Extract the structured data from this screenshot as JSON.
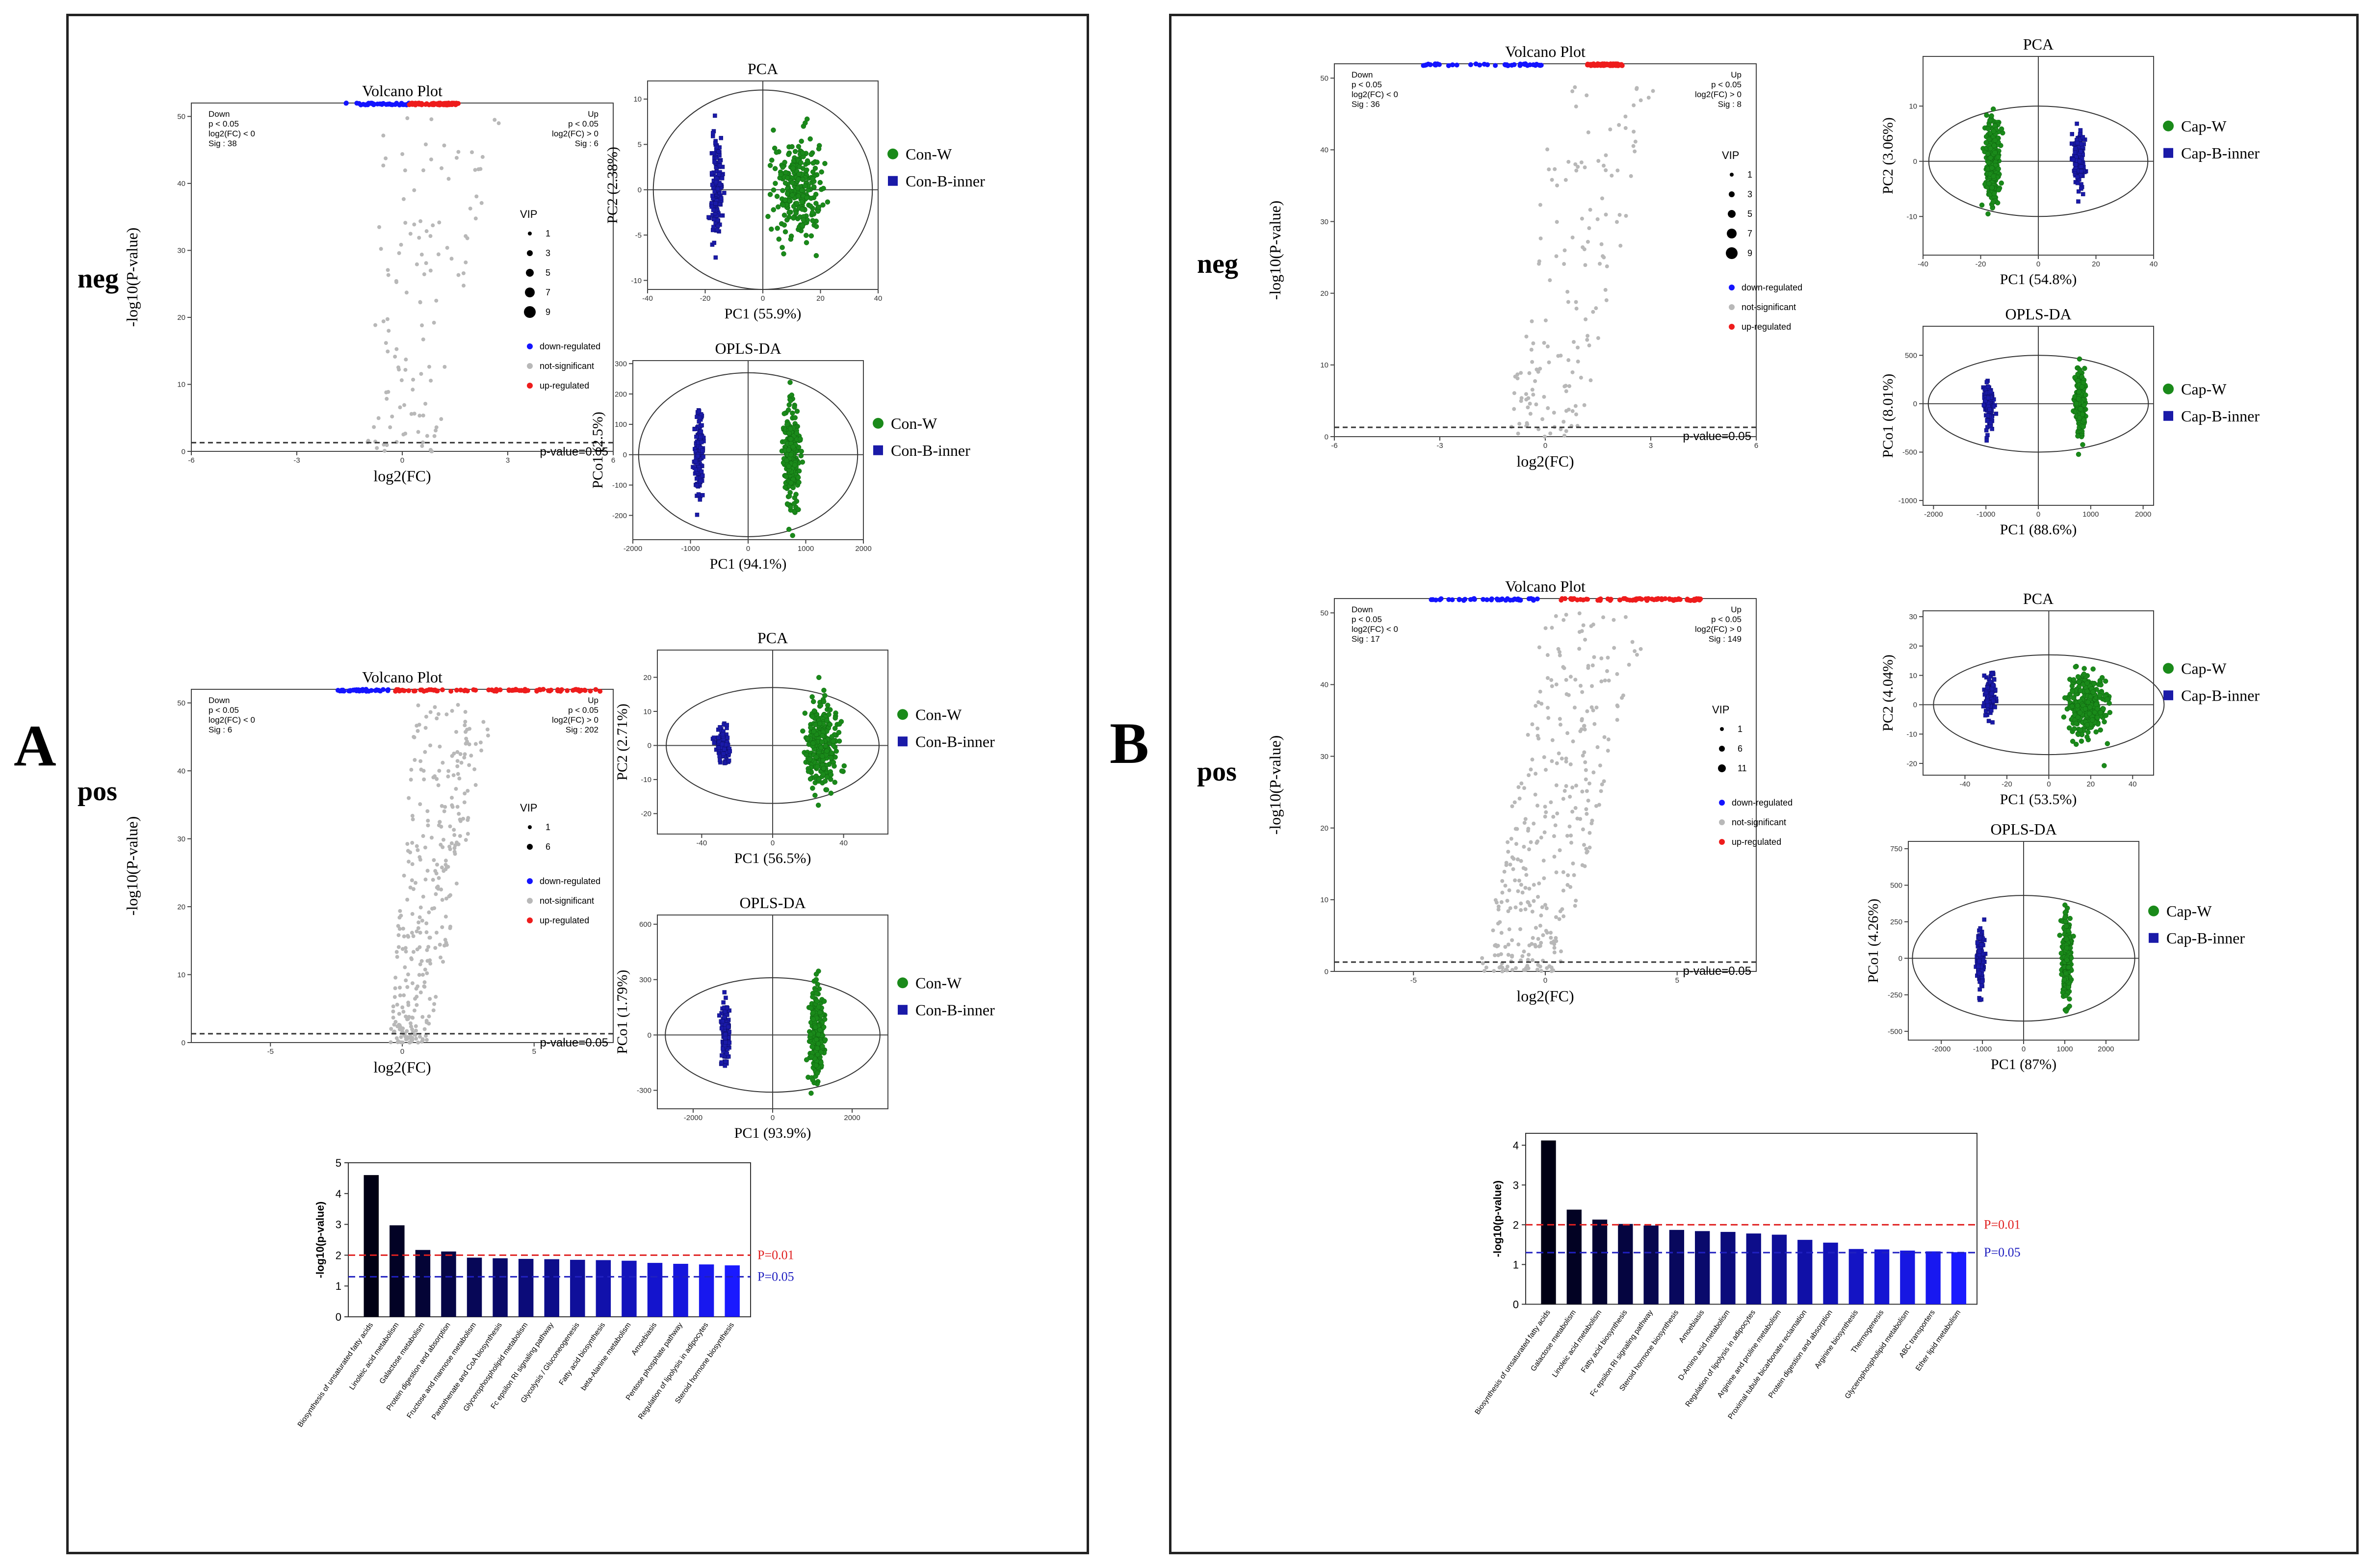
{
  "panels": {
    "A": {
      "letter": "A",
      "neg_label": "neg",
      "pos_label": "pos"
    },
    "B": {
      "letter": "B",
      "neg_label": "neg",
      "pos_label": "pos"
    }
  },
  "colors": {
    "down": "#1414ff",
    "up": "#ee1c1c",
    "ns": "#b8b8b8",
    "green": "#1a8a1a",
    "blue": "#1a1aa8",
    "barBlack": "#000000",
    "barBlue": "#1a1aff",
    "lineRed": "#e02020",
    "lineBlue": "#2020c0"
  },
  "chart_data": [
    {
      "id": "A-neg-volcano",
      "type": "scatter",
      "title": "Volcano Plot",
      "xlabel": "log2(FC)",
      "ylabel": "-log10(P-value)",
      "xlim": [
        -6,
        6
      ],
      "ylim": [
        0,
        52
      ],
      "xticks": [
        -6,
        -3,
        0,
        3,
        6
      ],
      "yticks": [
        0,
        10,
        20,
        30,
        40,
        50
      ],
      "down_info": [
        "Down",
        "p < 0.05",
        "log2(FC) < 0",
        "Sig : 38"
      ],
      "up_info": [
        "Up",
        "p < 0.05",
        "log2(FC) > 0",
        "Sig : 6"
      ],
      "vip_title": "VIP",
      "vip_levels": [
        "1",
        "3",
        "5",
        "7",
        "9"
      ],
      "legend": [
        "down-regulated",
        "not-significant",
        "up-regulated"
      ],
      "threshold_label": "p-value=0.05",
      "threshold": 1.3,
      "down_x": [
        -1.6,
        0.2
      ],
      "up_x": [
        0.2,
        1.6
      ],
      "ns_range": [
        [
          -1.0,
          1.0
        ],
        [
          -0.6,
          2.8
        ]
      ],
      "ns_count": 120,
      "sig_y": 52
    },
    {
      "id": "A-neg-pca",
      "type": "scatter",
      "title": "PCA",
      "xlabel": "PC1 (55.9%)",
      "ylabel": "PC2 (2.38%)",
      "xlim": [
        -40,
        40
      ],
      "ylim": [
        -11,
        12
      ],
      "xticks": [
        -40,
        -20,
        0,
        20,
        40
      ],
      "yticks": [
        -10,
        -5,
        0,
        5,
        10
      ],
      "series": [
        {
          "name": "Con-W",
          "color": "green",
          "center": [
            12,
            0
          ],
          "spread": [
            7,
            4.5
          ],
          "n": 260,
          "marker": "circle"
        },
        {
          "name": "Con-B-inner",
          "color": "blue",
          "center": [
            -16,
            0
          ],
          "spread": [
            1.6,
            4.5
          ],
          "n": 160,
          "marker": "square"
        }
      ],
      "ellipse": [
        38,
        11
      ]
    },
    {
      "id": "A-neg-oplsda",
      "type": "scatter",
      "title": "OPLS-DA",
      "xlabel": "PC1 (94.1%)",
      "ylabel": "PCo1 (2.5%)",
      "xlim": [
        -2000,
        2000
      ],
      "ylim": [
        -280,
        310
      ],
      "xticks": [
        -2000,
        -1000,
        0,
        1000,
        2000
      ],
      "yticks": [
        -200,
        -100,
        0,
        100,
        200,
        300
      ],
      "series": [
        {
          "name": "Con-W",
          "color": "green",
          "center": [
            750,
            0
          ],
          "spread": [
            110,
            140
          ],
          "n": 260,
          "marker": "circle"
        },
        {
          "name": "Con-B-inner",
          "color": "blue",
          "center": [
            -850,
            0
          ],
          "spread": [
            70,
            110
          ],
          "n": 160,
          "marker": "square"
        }
      ],
      "ellipse": [
        1900,
        270
      ]
    },
    {
      "id": "A-pos-volcano",
      "type": "scatter",
      "title": "Volcano Plot",
      "xlabel": "log2(FC)",
      "ylabel": "-log10(P-value)",
      "xlim": [
        -8,
        8
      ],
      "ylim": [
        0,
        52
      ],
      "xticks": [
        -5,
        0,
        5
      ],
      "yticks": [
        0,
        10,
        20,
        30,
        40,
        50
      ],
      "down_info": [
        "Down",
        "p < 0.05",
        "log2(FC) < 0",
        "Sig : 6"
      ],
      "up_info": [
        "Up",
        "p < 0.05",
        "log2(FC) > 0",
        "Sig : 202"
      ],
      "vip_title": "VIP",
      "vip_levels": [
        "1",
        "6"
      ],
      "legend": [
        "down-regulated",
        "not-significant",
        "up-regulated"
      ],
      "threshold_label": "p-value=0.05",
      "threshold": 1.3,
      "down_x": [
        -2.5,
        -0.5
      ],
      "up_x": [
        -0.3,
        7.5
      ],
      "ns_range": [
        [
          -0.5,
          1.0
        ],
        [
          0.5,
          3.5
        ]
      ],
      "ns_count": 320,
      "sig_y": 52
    },
    {
      "id": "A-pos-pca",
      "type": "scatter",
      "title": "PCA",
      "xlabel": "PC1 (56.5%)",
      "ylabel": "PC2 (2.71%)",
      "xlim": [
        -65,
        65
      ],
      "ylim": [
        -26,
        28
      ],
      "xticks": [
        -40,
        0,
        40
      ],
      "yticks": [
        -20,
        -10,
        0,
        10,
        20
      ],
      "series": [
        {
          "name": "Con-W",
          "color": "green",
          "center": [
            28,
            0
          ],
          "spread": [
            7,
            10
          ],
          "n": 280,
          "marker": "circle"
        },
        {
          "name": "Con-B-inner",
          "color": "blue",
          "center": [
            -28,
            0
          ],
          "spread": [
            3,
            4
          ],
          "n": 110,
          "marker": "square"
        }
      ],
      "ellipse": [
        60,
        17
      ]
    },
    {
      "id": "A-pos-oplsda",
      "type": "scatter",
      "title": "OPLS-DA",
      "xlabel": "PC1 (93.9%)",
      "ylabel": "PCo1 (1.79%)",
      "xlim": [
        -2900,
        2900
      ],
      "ylim": [
        -400,
        650
      ],
      "xticks": [
        -2000,
        0,
        2000
      ],
      "yticks": [
        -300,
        0,
        300,
        600
      ],
      "series": [
        {
          "name": "Con-W",
          "color": "green",
          "center": [
            1100,
            0
          ],
          "spread": [
            150,
            200
          ],
          "n": 260,
          "marker": "circle"
        },
        {
          "name": "Con-B-inner",
          "color": "blue",
          "center": [
            -1200,
            0
          ],
          "spread": [
            80,
            150
          ],
          "n": 130,
          "marker": "square"
        }
      ],
      "ellipse": [
        2700,
        310
      ]
    },
    {
      "id": "A-bar",
      "type": "bar",
      "ylabel": "-log10(p-value)",
      "ylim": [
        0,
        5
      ],
      "yticks": [
        0,
        1,
        2,
        3,
        4,
        5
      ],
      "categories": [
        "Biosynthesis of unsaturated fatty acids",
        "Linoleic acid metabolism",
        "Galactose metabolism",
        "Protein digestion and absorption",
        "Fructose and mannose metabolism",
        "Pantothenate and CoA biosynthesis",
        "Glycerophospholipid metabolism",
        "Fc epsilon RI signaling pathway",
        "Glycolysis / Gluconeogenesis",
        "Fatty acid biosynthesis",
        "beta-Alanine metabolism",
        "Amoebiasis",
        "Pentose phosphate pathway",
        "Regulation of lipolysis in adipocytes",
        "Steroid hormone biosynthesis"
      ],
      "values": [
        4.6,
        2.97,
        2.17,
        2.12,
        1.92,
        1.9,
        1.88,
        1.87,
        1.85,
        1.84,
        1.82,
        1.75,
        1.72,
        1.7,
        1.67
      ],
      "lines": [
        {
          "label": "P=0.01",
          "value": 2.0,
          "color": "lineRed"
        },
        {
          "label": "P=0.05",
          "value": 1.3,
          "color": "lineBlue"
        }
      ]
    },
    {
      "id": "B-neg-volcano",
      "type": "scatter",
      "title": "Volcano Plot",
      "xlabel": "log2(FC)",
      "ylabel": "-log10(P-value)",
      "xlim": [
        -6,
        6
      ],
      "ylim": [
        0,
        52
      ],
      "xticks": [
        -6,
        -3,
        0,
        3,
        6
      ],
      "yticks": [
        0,
        10,
        20,
        30,
        40,
        50
      ],
      "down_info": [
        "Down",
        "p < 0.05",
        "log2(FC) < 0",
        "Sig : 36"
      ],
      "up_info": [
        "Up",
        "p < 0.05",
        "log2(FC) > 0",
        "Sig : 8"
      ],
      "vip_title": "VIP",
      "vip_levels": [
        "1",
        "3",
        "5",
        "7",
        "9"
      ],
      "legend": [
        "down-regulated",
        "not-significant",
        "up-regulated"
      ],
      "threshold_label": "p-value=0.05",
      "threshold": 1.3,
      "down_x": [
        -3.5,
        -0.1
      ],
      "up_x": [
        1.2,
        2.2
      ],
      "ns_range": [
        [
          -1.0,
          1.0
        ],
        [
          -0.3,
          3.2
        ]
      ],
      "ns_count": 150,
      "sig_y": 52
    },
    {
      "id": "B-neg-pca",
      "type": "scatter",
      "title": "PCA",
      "xlabel": "PC1 (54.8%)",
      "ylabel": "PC2 (3.06%)",
      "xlim": [
        -40,
        40
      ],
      "ylim": [
        -17,
        19
      ],
      "xticks": [
        -40,
        -20,
        0,
        20,
        40
      ],
      "yticks": [
        -10,
        0,
        10
      ],
      "series": [
        {
          "name": "Cap-W",
          "color": "green",
          "center": [
            -16,
            0
          ],
          "spread": [
            2,
            7
          ],
          "n": 280,
          "marker": "circle"
        },
        {
          "name": "Cap-B-inner",
          "color": "blue",
          "center": [
            14,
            0
          ],
          "spread": [
            1.8,
            4
          ],
          "n": 150,
          "marker": "square"
        }
      ],
      "ellipse": [
        38,
        10
      ]
    },
    {
      "id": "B-neg-oplsda",
      "type": "scatter",
      "title": "OPLS-DA",
      "xlabel": "PC1 (88.6%)",
      "ylabel": "PCo1 (8.01%)",
      "xlim": [
        -2200,
        2200
      ],
      "ylim": [
        -1050,
        800
      ],
      "xticks": [
        -2000,
        -1000,
        0,
        1000,
        2000
      ],
      "yticks": [
        -1000,
        -500,
        0,
        500
      ],
      "series": [
        {
          "name": "Cap-W",
          "color": "green",
          "center": [
            800,
            0
          ],
          "spread": [
            70,
            260
          ],
          "n": 250,
          "marker": "circle"
        },
        {
          "name": "Cap-B-inner",
          "color": "blue",
          "center": [
            -950,
            0
          ],
          "spread": [
            70,
            180
          ],
          "n": 150,
          "marker": "square"
        }
      ],
      "ellipse": [
        2100,
        500
      ]
    },
    {
      "id": "B-pos-volcano",
      "type": "scatter",
      "title": "Volcano Plot",
      "xlabel": "log2(FC)",
      "ylabel": "-log10(P-value)",
      "xlim": [
        -8,
        8
      ],
      "ylim": [
        0,
        52
      ],
      "xticks": [
        -5,
        0,
        5
      ],
      "yticks": [
        0,
        10,
        20,
        30,
        40,
        50
      ],
      "down_info": [
        "Down",
        "p < 0.05",
        "log2(FC) < 0",
        "Sig : 17"
      ],
      "up_info": [
        "Up",
        "p < 0.05",
        "log2(FC) > 0",
        "Sig : 149"
      ],
      "vip_title": "VIP",
      "vip_levels": [
        "1",
        "6",
        "11"
      ],
      "legend": [
        "down-regulated",
        "not-significant",
        "up-regulated"
      ],
      "threshold_label": "p-value=0.05",
      "threshold": 1.3,
      "down_x": [
        -4.5,
        -0.2
      ],
      "up_x": [
        0.5,
        6.0
      ],
      "ns_range": [
        [
          -2.5,
          0.5
        ],
        [
          0.0,
          4.0
        ]
      ],
      "ns_count": 330,
      "sig_y": 52
    },
    {
      "id": "B-pos-pca",
      "type": "scatter",
      "title": "PCA",
      "xlabel": "PC1 (53.5%)",
      "ylabel": "PC2 (4.04%)",
      "xlim": [
        -60,
        50
      ],
      "ylim": [
        -24,
        32
      ],
      "xticks": [
        -40,
        -20,
        0,
        20,
        40
      ],
      "yticks": [
        -20,
        -10,
        0,
        10,
        20,
        30
      ],
      "series": [
        {
          "name": "Cap-W",
          "color": "green",
          "center": [
            18,
            0
          ],
          "spread": [
            8,
            9
          ],
          "n": 300,
          "marker": "circle"
        },
        {
          "name": "Cap-B-inner",
          "color": "blue",
          "center": [
            -28,
            3
          ],
          "spread": [
            2.2,
            6
          ],
          "n": 110,
          "marker": "square"
        }
      ],
      "ellipse": [
        55,
        17
      ]
    },
    {
      "id": "B-pos-oplsda",
      "type": "scatter",
      "title": "OPLS-DA",
      "xlabel": "PC1 (87%)",
      "ylabel": "PCo1 (4.26%)",
      "xlim": [
        -2800,
        2800
      ],
      "ylim": [
        -560,
        800
      ],
      "xticks": [
        -2000,
        -1000,
        0,
        1000,
        2000
      ],
      "yticks": [
        -500,
        -250,
        0,
        250,
        500,
        750
      ],
      "series": [
        {
          "name": "Cap-W",
          "color": "green",
          "center": [
            1050,
            0
          ],
          "spread": [
            90,
            220
          ],
          "n": 280,
          "marker": "circle"
        },
        {
          "name": "Cap-B-inner",
          "color": "blue",
          "center": [
            -1050,
            0
          ],
          "spread": [
            70,
            150
          ],
          "n": 150,
          "marker": "square"
        }
      ],
      "ellipse": [
        2700,
        430
      ]
    },
    {
      "id": "B-bar",
      "type": "bar",
      "ylabel": "-log10(p-value)",
      "ylim": [
        0,
        4.3
      ],
      "yticks": [
        0,
        1,
        2,
        3,
        4
      ],
      "categories": [
        "Biosynthesis of unsaturated fatty acids",
        "Galactose metabolism",
        "Linoleic acid metabolism",
        "Fatty acid biosynthesis",
        "Fc epsilon RI signaling pathway",
        "Steroid hormone biosynthesis",
        "Amoebiasis",
        "D-Amino acid metabolism",
        "Regulation of lipolysis in adipocytes",
        "Arginine and proline metabolism",
        "Proximal tubule bicarbonate reclamation",
        "Protein digestion and absorption",
        "Arginine biosynthesis",
        "Thermogenesis",
        "Glycerophospholipid metabolism",
        "ABC transporters",
        "Ether lipid metabolism"
      ],
      "values": [
        4.12,
        2.38,
        2.13,
        2.02,
        1.98,
        1.87,
        1.84,
        1.82,
        1.78,
        1.75,
        1.62,
        1.55,
        1.39,
        1.38,
        1.35,
        1.33,
        1.31
      ],
      "lines": [
        {
          "label": "P=0.01",
          "value": 2.0,
          "color": "lineRed"
        },
        {
          "label": "P=0.05",
          "value": 1.3,
          "color": "lineBlue"
        }
      ]
    }
  ]
}
